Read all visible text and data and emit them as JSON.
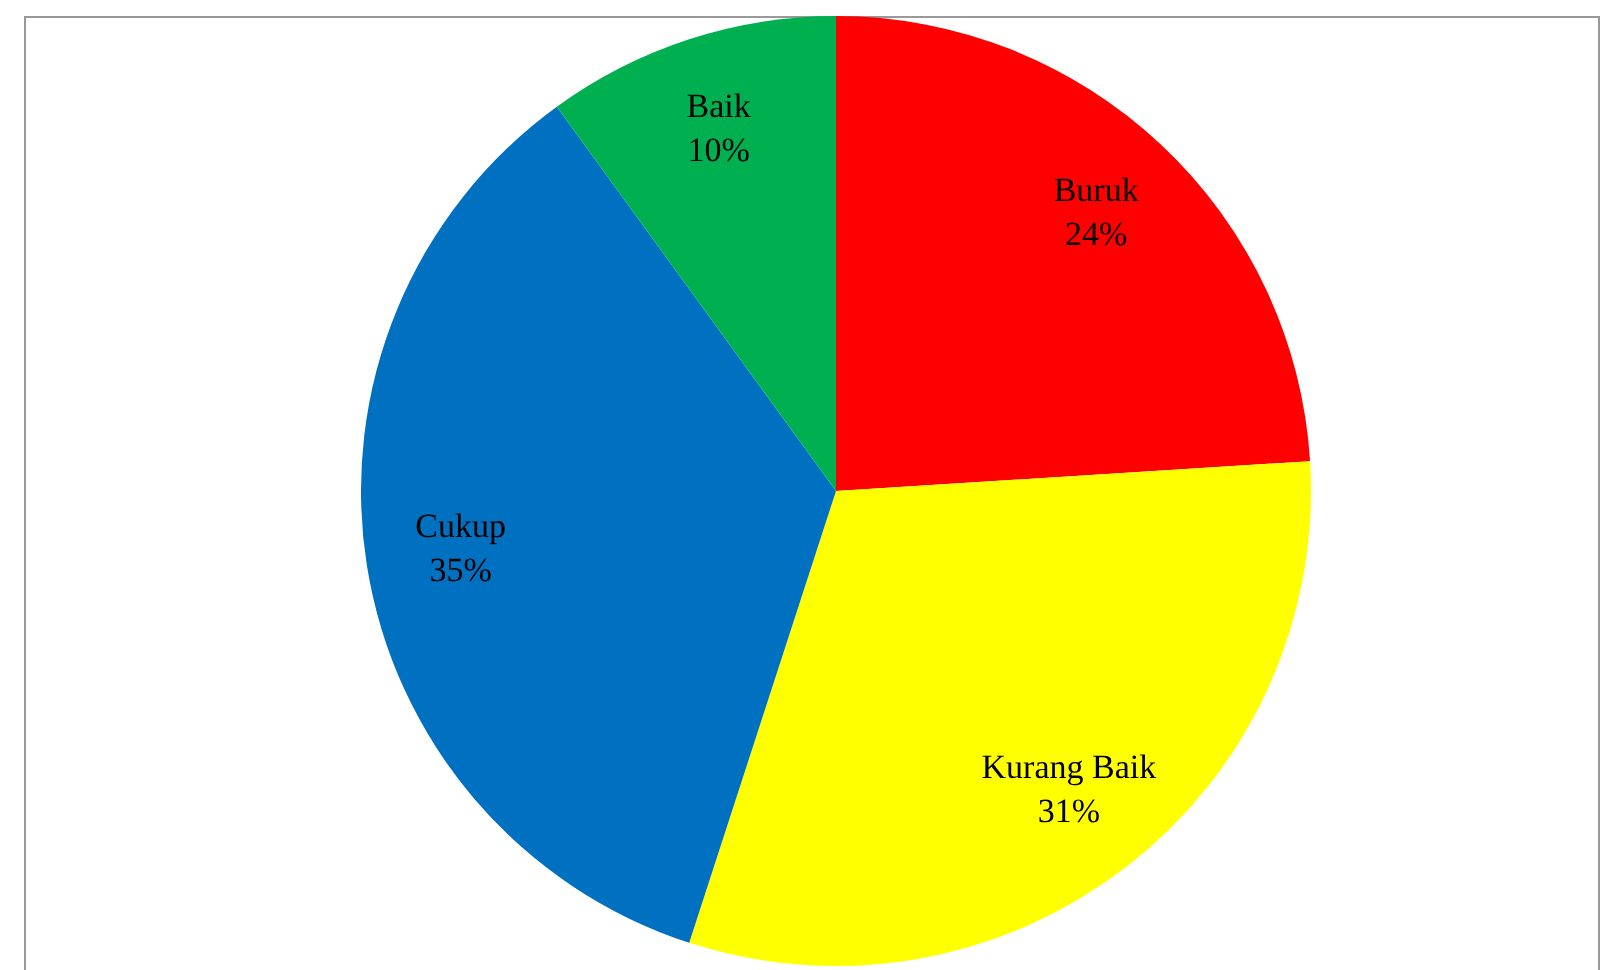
{
  "chart_data": {
    "type": "pie",
    "categories": [
      "Buruk",
      "Kurang Baik",
      "Cukup",
      "Baik"
    ],
    "values": [
      24,
      31,
      35,
      10
    ],
    "colors": [
      "#ff0000",
      "#ffff00",
      "#0070c0",
      "#00b050"
    ],
    "value_labels": [
      "24%",
      "31%",
      "35%",
      "10%"
    ],
    "legend": false
  }
}
